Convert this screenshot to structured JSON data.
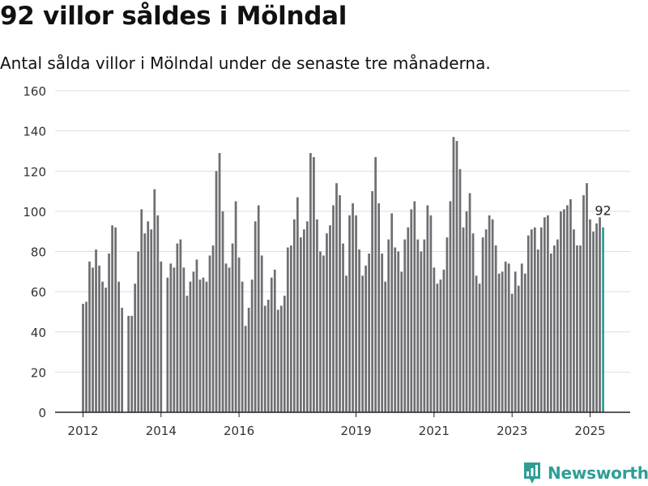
{
  "header": {
    "title": "92 villor såldes i Mölndal",
    "subtitle": "Antal sålda villor i Mölndal under de senaste tre månaderna."
  },
  "brand": {
    "name": "Newsworthy",
    "color": "#2e9e95",
    "icon": "newsworthy-logo-icon"
  },
  "colors": {
    "bar": "#6e6e73",
    "highlight": "#2e9e95",
    "grid": "#dddddd",
    "axis": "#222222"
  },
  "chart_data": {
    "type": "bar",
    "title": "",
    "xlabel": "",
    "ylabel": "",
    "ylim": [
      0,
      160
    ],
    "yticks": [
      0,
      20,
      40,
      60,
      80,
      100,
      120,
      140,
      160
    ],
    "xlim": [
      2011.5,
      2025.85
    ],
    "xticks": [
      "2012",
      "2014",
      "2016",
      "2019",
      "2021",
      "2023",
      "2025"
    ],
    "grid": true,
    "x_start": "2012-01",
    "interval": "monthly",
    "series": [
      {
        "values": [
          54,
          55,
          75,
          72,
          81,
          73,
          65,
          62,
          79,
          93,
          92,
          65,
          52,
          null,
          48,
          48,
          64,
          80,
          101,
          89,
          95,
          91,
          111,
          98,
          75,
          null,
          67,
          74,
          72,
          84,
          86,
          72,
          58,
          65,
          70,
          76,
          66,
          67,
          65,
          78,
          83,
          120,
          129,
          100,
          74,
          72,
          84,
          105,
          77,
          65,
          43,
          52,
          66,
          95,
          103,
          78,
          53,
          56,
          67,
          71,
          51,
          53,
          58,
          82,
          83,
          96,
          107,
          87,
          91,
          95,
          129,
          127,
          96,
          80,
          78,
          89,
          93,
          103,
          114,
          108,
          84,
          68,
          98,
          104,
          98,
          81,
          68,
          73,
          79,
          110,
          127,
          104,
          79,
          65,
          86,
          99,
          82,
          80,
          70,
          86,
          92,
          101,
          105,
          86,
          80,
          86,
          103,
          98,
          72,
          64,
          66,
          71,
          87,
          105,
          137,
          135,
          121,
          92,
          100,
          109,
          89,
          68,
          64,
          87,
          91,
          98,
          96,
          83,
          69,
          70,
          75,
          74,
          59,
          70,
          63,
          74,
          69,
          88,
          91,
          92,
          81,
          92,
          97,
          98,
          79,
          83,
          86,
          100,
          101,
          103,
          106,
          91,
          83,
          83,
          108,
          114,
          96,
          90,
          94,
          97,
          92
        ]
      }
    ],
    "highlight_last": true,
    "annotations": [
      {
        "text": "92",
        "target": "last"
      }
    ]
  }
}
